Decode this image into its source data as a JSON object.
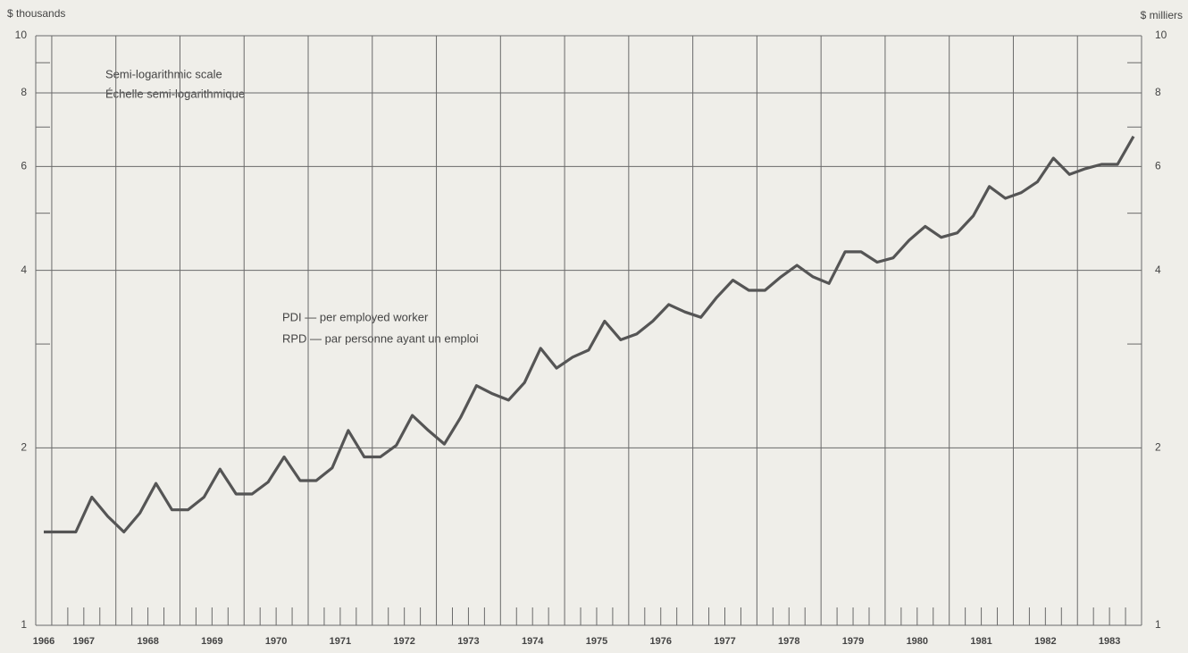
{
  "chart_data": {
    "type": "line",
    "y_label": "$ thousands",
    "y2_label": "$ milliers",
    "annotations": [
      "Semi-logarithmic scale",
      "Échelle semi-logarithmique",
      "PDI — per employed worker",
      "RPD — par personne ayant un emploi"
    ],
    "log_scale": true,
    "grid": true,
    "xlim": [
      1966.75,
      1984
    ],
    "ylim": [
      1,
      10
    ],
    "y2lim": [
      1,
      10
    ],
    "yticks": [
      1,
      2,
      4,
      6,
      8,
      10
    ],
    "y2ticks": [
      1,
      2,
      4,
      6,
      8,
      10
    ],
    "yminorticks": [
      3,
      5,
      7,
      9
    ],
    "xticks": [
      {
        "value": 1966.875,
        "label": "1966"
      },
      {
        "value": 1967.5,
        "label": "1967"
      },
      {
        "value": 1968.5,
        "label": "1968"
      },
      {
        "value": 1969.5,
        "label": "1969"
      },
      {
        "value": 1970.5,
        "label": "1970"
      },
      {
        "value": 1971.5,
        "label": "1971"
      },
      {
        "value": 1972.5,
        "label": "1972"
      },
      {
        "value": 1973.5,
        "label": "1973"
      },
      {
        "value": 1974.5,
        "label": "1974"
      },
      {
        "value": 1975.5,
        "label": "1975"
      },
      {
        "value": 1976.5,
        "label": "1976"
      },
      {
        "value": 1977.5,
        "label": "1977"
      },
      {
        "value": 1978.5,
        "label": "1978"
      },
      {
        "value": 1979.5,
        "label": "1979"
      },
      {
        "value": 1980.5,
        "label": "1980"
      },
      {
        "value": 1981.5,
        "label": "1981"
      },
      {
        "value": 1982.5,
        "label": "1982"
      },
      {
        "value": 1983.5,
        "label": "1983"
      }
    ],
    "xgridlines": [
      1967,
      1968,
      1969,
      1970,
      1971,
      1972,
      1973,
      1974,
      1975,
      1976,
      1977,
      1978,
      1979,
      1980,
      1981,
      1982,
      1983,
      1984
    ],
    "xminorticks": [
      1967.25,
      1967.5,
      1967.75,
      1968.25,
      1968.5,
      1968.75,
      1969.25,
      1969.5,
      1969.75,
      1970.25,
      1970.5,
      1970.75,
      1971.25,
      1971.5,
      1971.75,
      1972.25,
      1972.5,
      1972.75,
      1973.25,
      1973.5,
      1973.75,
      1974.25,
      1974.5,
      1974.75,
      1975.25,
      1975.5,
      1975.75,
      1976.25,
      1976.5,
      1976.75,
      1977.25,
      1977.5,
      1977.75,
      1978.25,
      1978.5,
      1978.75,
      1979.25,
      1979.5,
      1979.75,
      1980.25,
      1980.5,
      1980.75,
      1981.25,
      1981.5,
      1981.75,
      1982.25,
      1982.5,
      1982.75,
      1983.25,
      1983.5,
      1983.75
    ],
    "x": [
      1966.875,
      1967.125,
      1967.375,
      1967.625,
      1967.875,
      1968.125,
      1968.375,
      1968.625,
      1968.875,
      1969.125,
      1969.375,
      1969.625,
      1969.875,
      1970.125,
      1970.375,
      1970.625,
      1970.875,
      1971.125,
      1971.375,
      1971.625,
      1971.875,
      1972.125,
      1972.375,
      1972.625,
      1972.875,
      1973.125,
      1973.375,
      1973.625,
      1973.875,
      1974.125,
      1974.375,
      1974.625,
      1974.875,
      1975.125,
      1975.375,
      1975.625,
      1975.875,
      1976.125,
      1976.375,
      1976.625,
      1976.875,
      1977.125,
      1977.375,
      1977.625,
      1977.875,
      1978.125,
      1978.375,
      1978.625,
      1978.875,
      1979.125,
      1979.375,
      1979.625,
      1979.875,
      1980.125,
      1980.375,
      1980.625,
      1980.875,
      1981.125,
      1981.375,
      1981.625,
      1981.875,
      1982.125,
      1982.375,
      1982.625,
      1982.875,
      1983.125,
      1983.375,
      1983.625,
      1983.875
    ],
    "series": [
      {
        "name": "PDI — per employed worker",
        "color": "#555555",
        "values": [
          1.44,
          1.44,
          1.44,
          1.65,
          1.53,
          1.44,
          1.55,
          1.74,
          1.57,
          1.57,
          1.65,
          1.84,
          1.67,
          1.67,
          1.75,
          1.93,
          1.76,
          1.76,
          1.85,
          2.14,
          1.93,
          1.93,
          2.02,
          2.27,
          2.14,
          2.03,
          2.25,
          2.55,
          2.47,
          2.41,
          2.58,
          2.95,
          2.73,
          2.85,
          2.93,
          3.28,
          3.05,
          3.12,
          3.28,
          3.5,
          3.4,
          3.33,
          3.6,
          3.85,
          3.7,
          3.7,
          3.9,
          4.08,
          3.9,
          3.8,
          4.3,
          4.3,
          4.13,
          4.2,
          4.5,
          4.75,
          4.55,
          4.63,
          4.95,
          5.55,
          5.3,
          5.42,
          5.65,
          6.2,
          5.82,
          5.95,
          6.05,
          6.05,
          6.75
        ]
      }
    ]
  }
}
